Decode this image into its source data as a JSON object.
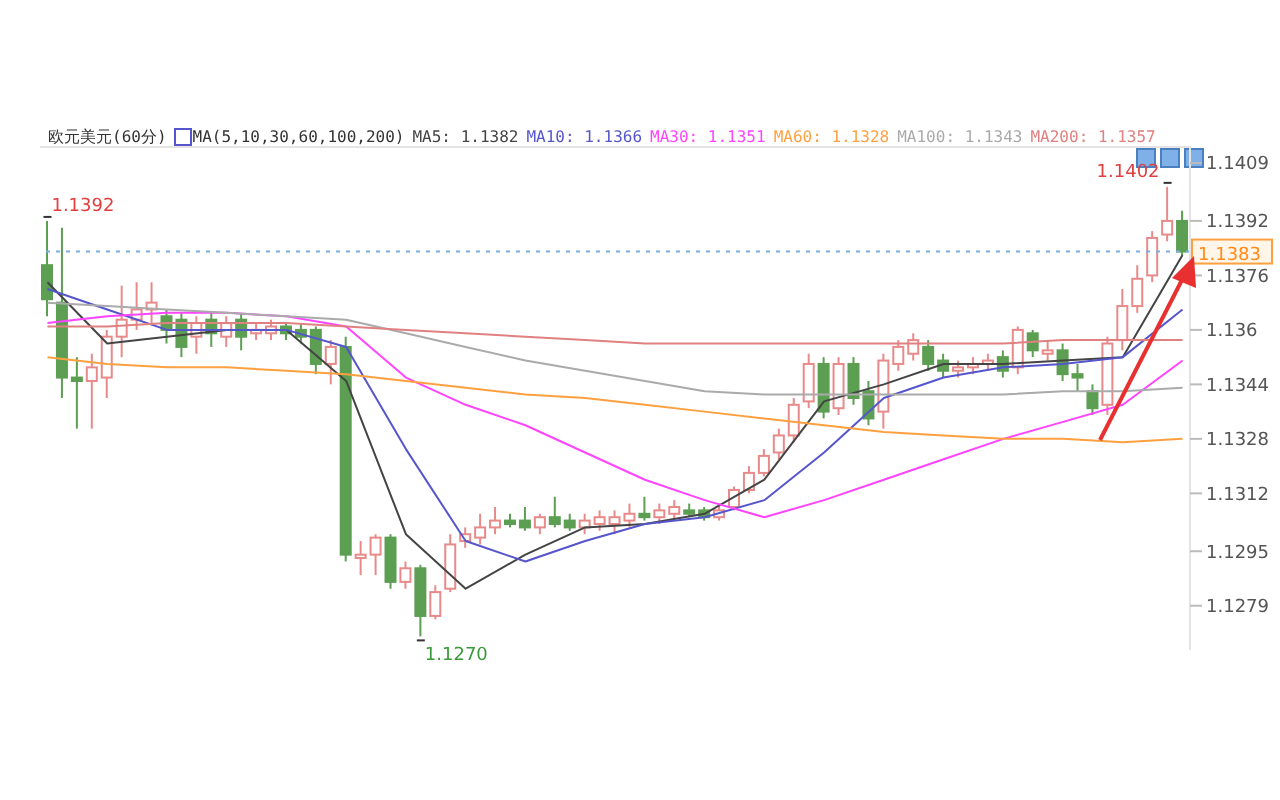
{
  "chart_data": {
    "type": "candlestick",
    "title": "欧元美元(60分)",
    "subtitle": "MA(5,10,30,60,100,200)",
    "categories": [
      null,
      null,
      null,
      null,
      null,
      null,
      null,
      null,
      null,
      null,
      null,
      null,
      null,
      null,
      null,
      null,
      null,
      null,
      null,
      null,
      null,
      null,
      null,
      null,
      null,
      null,
      null,
      null,
      null,
      null,
      null,
      null,
      null,
      null,
      null,
      null,
      null,
      null,
      null,
      null,
      null,
      null,
      null,
      null,
      null,
      null,
      null,
      null,
      null,
      null,
      null,
      null,
      null,
      null,
      null,
      null,
      null,
      null,
      null,
      null,
      null,
      null,
      null,
      null,
      null,
      null,
      null,
      null,
      null,
      null,
      null,
      null,
      null,
      null,
      null,
      null,
      null
    ],
    "ohlc": [
      [
        1.1379,
        1.1392,
        1.1364,
        1.1369
      ],
      [
        1.1368,
        1.139,
        1.134,
        1.1346
      ],
      [
        1.1346,
        1.1352,
        1.1331,
        1.1345
      ],
      [
        1.1345,
        1.1353,
        1.1331,
        1.1349
      ],
      [
        1.1346,
        1.136,
        1.134,
        1.1358
      ],
      [
        1.1358,
        1.1373,
        1.1352,
        1.1363
      ],
      [
        1.1363,
        1.1374,
        1.136,
        1.1366
      ],
      [
        1.1366,
        1.1374,
        1.1362,
        1.1368
      ],
      [
        1.1364,
        1.1366,
        1.1356,
        1.136
      ],
      [
        1.1363,
        1.1365,
        1.1352,
        1.1355
      ],
      [
        1.1358,
        1.1364,
        1.1353,
        1.1362
      ],
      [
        1.1363,
        1.1365,
        1.1355,
        1.1359
      ],
      [
        1.1358,
        1.1364,
        1.1355,
        1.1362
      ],
      [
        1.1363,
        1.1365,
        1.1354,
        1.1358
      ],
      [
        1.1359,
        1.1362,
        1.1357,
        1.136
      ],
      [
        1.1359,
        1.1363,
        1.1357,
        1.1361
      ],
      [
        1.1361,
        1.1362,
        1.1357,
        1.1359
      ],
      [
        1.136,
        1.1362,
        1.1356,
        1.1358
      ],
      [
        1.136,
        1.1361,
        1.1347,
        1.135
      ],
      [
        1.135,
        1.1357,
        1.1344,
        1.1355
      ],
      [
        1.1355,
        1.1358,
        1.1292,
        1.1294
      ],
      [
        1.1293,
        1.1298,
        1.1288,
        1.1294
      ],
      [
        1.1294,
        1.13,
        1.1288,
        1.1299
      ],
      [
        1.1299,
        1.13,
        1.1284,
        1.1286
      ],
      [
        1.1286,
        1.1292,
        1.1284,
        1.129
      ],
      [
        1.129,
        1.1291,
        1.127,
        1.1276
      ],
      [
        1.1276,
        1.1285,
        1.1275,
        1.1283
      ],
      [
        1.1284,
        1.13,
        1.1283,
        1.1297
      ],
      [
        1.1298,
        1.1302,
        1.1296,
        1.13
      ],
      [
        1.1299,
        1.1306,
        1.1297,
        1.1302
      ],
      [
        1.1302,
        1.1308,
        1.13,
        1.1304
      ],
      [
        1.1304,
        1.1306,
        1.1302,
        1.1303
      ],
      [
        1.1304,
        1.1308,
        1.1301,
        1.1302
      ],
      [
        1.1302,
        1.1306,
        1.13,
        1.1305
      ],
      [
        1.1305,
        1.1311,
        1.1302,
        1.1303
      ],
      [
        1.1304,
        1.1306,
        1.1301,
        1.1302
      ],
      [
        1.1302,
        1.1306,
        1.13,
        1.1304
      ],
      [
        1.1303,
        1.1307,
        1.1301,
        1.1305
      ],
      [
        1.1303,
        1.1307,
        1.13,
        1.1305
      ],
      [
        1.1304,
        1.1309,
        1.1302,
        1.1306
      ],
      [
        1.1306,
        1.1311,
        1.1304,
        1.1305
      ],
      [
        1.1305,
        1.1309,
        1.1303,
        1.1307
      ],
      [
        1.1306,
        1.131,
        1.1304,
        1.1308
      ],
      [
        1.1307,
        1.1309,
        1.1305,
        1.1306
      ],
      [
        1.1307,
        1.1308,
        1.1304,
        1.1305
      ],
      [
        1.1305,
        1.1309,
        1.1304,
        1.1307
      ],
      [
        1.1308,
        1.1314,
        1.1307,
        1.1313
      ],
      [
        1.1313,
        1.132,
        1.1312,
        1.1318
      ],
      [
        1.1318,
        1.1325,
        1.1317,
        1.1323
      ],
      [
        1.1324,
        1.1331,
        1.1322,
        1.1329
      ],
      [
        1.1329,
        1.134,
        1.1327,
        1.1338
      ],
      [
        1.1339,
        1.1353,
        1.1337,
        1.135
      ],
      [
        1.135,
        1.1352,
        1.1334,
        1.1336
      ],
      [
        1.1337,
        1.1352,
        1.1335,
        1.135
      ],
      [
        1.135,
        1.1352,
        1.1338,
        1.134
      ],
      [
        1.1342,
        1.1345,
        1.1332,
        1.1334
      ],
      [
        1.1336,
        1.1353,
        1.1331,
        1.1351
      ],
      [
        1.135,
        1.1357,
        1.1348,
        1.1355
      ],
      [
        1.1353,
        1.1359,
        1.1351,
        1.1357
      ],
      [
        1.1355,
        1.1357,
        1.1348,
        1.135
      ],
      [
        1.1351,
        1.1353,
        1.1346,
        1.1348
      ],
      [
        1.1348,
        1.1351,
        1.1346,
        1.1349
      ],
      [
        1.1349,
        1.1352,
        1.1347,
        1.135
      ],
      [
        1.135,
        1.1353,
        1.1348,
        1.1351
      ],
      [
        1.1352,
        1.1354,
        1.1346,
        1.1348
      ],
      [
        1.1349,
        1.1361,
        1.1347,
        1.136
      ],
      [
        1.1359,
        1.136,
        1.1352,
        1.1354
      ],
      [
        1.1353,
        1.1357,
        1.1351,
        1.1354
      ],
      [
        1.1354,
        1.1356,
        1.1345,
        1.1347
      ],
      [
        1.1347,
        1.135,
        1.1342,
        1.1346
      ],
      [
        1.1342,
        1.1344,
        1.1335,
        1.1337
      ],
      [
        1.1338,
        1.1358,
        1.1335,
        1.1356
      ],
      [
        1.1357,
        1.1372,
        1.1354,
        1.1367
      ],
      [
        1.1367,
        1.1379,
        1.1365,
        1.1375
      ],
      [
        1.1376,
        1.1389,
        1.1374,
        1.1387
      ],
      [
        1.1388,
        1.1402,
        1.1386,
        1.1392
      ],
      [
        1.1392,
        1.1395,
        1.1382,
        1.1383
      ]
    ],
    "colors": [
      "#5c9e52",
      "#5c9e52",
      "#5c9e52",
      "#e88a8a",
      "#e88a8a",
      "#e88a8a",
      "#e88a8a",
      "#e88a8a",
      "#5c9e52",
      "#5c9e52",
      "#e88a8a",
      "#5c9e52",
      "#e88a8a",
      "#5c9e52",
      "#e88a8a",
      "#e88a8a",
      "#5c9e52",
      "#5c9e52",
      "#5c9e52",
      "#e88a8a",
      "#5c9e52",
      "#e88a8a",
      "#e88a8a",
      "#5c9e52",
      "#e88a8a",
      "#5c9e52",
      "#e88a8a",
      "#e88a8a",
      "#e88a8a",
      "#e88a8a",
      "#e88a8a",
      "#5c9e52",
      "#5c9e52",
      "#e88a8a",
      "#5c9e52",
      "#5c9e52",
      "#e88a8a",
      "#e88a8a",
      "#e88a8a",
      "#e88a8a",
      "#5c9e52",
      "#e88a8a",
      "#e88a8a",
      "#5c9e52",
      "#5c9e52",
      "#e88a8a",
      "#e88a8a",
      "#e88a8a",
      "#e88a8a",
      "#e88a8a",
      "#e88a8a",
      "#e88a8a",
      "#5c9e52",
      "#e88a8a",
      "#5c9e52",
      "#5c9e52",
      "#e88a8a",
      "#e88a8a",
      "#e88a8a",
      "#5c9e52",
      "#5c9e52",
      "#e88a8a",
      "#e88a8a",
      "#e88a8a",
      "#5c9e52",
      "#e88a8a",
      "#5c9e52",
      "#e88a8a",
      "#5c9e52",
      "#5c9e52",
      "#5c9e52",
      "#e88a8a",
      "#e88a8a",
      "#e88a8a",
      "#e88a8a",
      "#e88a8a",
      "#5c9e52"
    ],
    "series": [
      {
        "type": "line",
        "name": "MA5: 1.1382",
        "color": "#444444",
        "values": [
          1.1374,
          null,
          null,
          null,
          1.1356,
          null,
          null,
          null,
          1.1358,
          null,
          null,
          null,
          1.136,
          null,
          null,
          null,
          1.136,
          null,
          null,
          null,
          1.1345,
          null,
          null,
          null,
          1.13,
          null,
          null,
          null,
          1.1284,
          null,
          null,
          null,
          1.1294,
          null,
          null,
          null,
          1.1302,
          null,
          null,
          null,
          1.1303,
          null,
          null,
          null,
          1.1306,
          null,
          null,
          null,
          1.1316,
          null,
          null,
          null,
          1.1339,
          null,
          null,
          null,
          1.1344,
          null,
          null,
          null,
          1.135,
          null,
          null,
          null,
          1.135,
          null,
          null,
          null,
          1.1351,
          null,
          null,
          null,
          1.1352,
          null,
          null,
          null,
          1.1382
        ]
      },
      {
        "type": "line",
        "name": "MA10: 1.1366",
        "color": "#5555cc",
        "values": [
          1.1372,
          null,
          null,
          null,
          1.1366,
          null,
          null,
          null,
          1.136,
          null,
          null,
          null,
          1.136,
          null,
          null,
          null,
          1.136,
          null,
          null,
          null,
          1.1355,
          null,
          null,
          null,
          1.1325,
          null,
          null,
          null,
          1.1298,
          null,
          null,
          null,
          1.1292,
          null,
          null,
          null,
          1.1298,
          null,
          null,
          null,
          1.1303,
          null,
          null,
          null,
          1.1305,
          null,
          null,
          null,
          1.131,
          null,
          null,
          null,
          1.1324,
          null,
          null,
          null,
          1.134,
          null,
          null,
          null,
          1.1346,
          null,
          null,
          null,
          1.1349,
          null,
          null,
          null,
          1.135,
          null,
          null,
          null,
          1.1352,
          null,
          null,
          null,
          1.1366
        ]
      },
      {
        "type": "line",
        "name": "MA30: 1.1351",
        "color": "#ff44ff",
        "values": [
          1.1362,
          null,
          null,
          null,
          1.1364,
          null,
          null,
          null,
          1.1365,
          null,
          null,
          null,
          1.1365,
          null,
          null,
          null,
          1.1364,
          null,
          null,
          null,
          1.1361,
          null,
          null,
          null,
          1.1346,
          null,
          null,
          null,
          1.1338,
          null,
          null,
          null,
          1.1332,
          null,
          null,
          null,
          1.1324,
          null,
          null,
          null,
          1.1316,
          null,
          null,
          null,
          1.131,
          null,
          null,
          null,
          1.1305,
          null,
          null,
          null,
          1.131,
          null,
          null,
          null,
          1.1316,
          null,
          null,
          null,
          1.1322,
          null,
          null,
          null,
          1.1328,
          null,
          null,
          null,
          1.1333,
          null,
          null,
          null,
          1.1338,
          null,
          null,
          null,
          1.1351
        ]
      },
      {
        "type": "line",
        "name": "MA60: 1.1328",
        "color": "#ffa040",
        "values": [
          1.1352,
          null,
          null,
          null,
          1.135,
          null,
          null,
          null,
          1.1349,
          null,
          null,
          null,
          1.1349,
          null,
          null,
          null,
          1.1348,
          null,
          null,
          null,
          1.1347,
          null,
          null,
          null,
          1.1345,
          null,
          null,
          null,
          1.1343,
          null,
          null,
          null,
          1.1341,
          null,
          null,
          null,
          1.134,
          null,
          null,
          null,
          1.1338,
          null,
          null,
          null,
          1.1336,
          null,
          null,
          null,
          1.1334,
          null,
          null,
          null,
          1.1332,
          null,
          null,
          null,
          1.133,
          null,
          null,
          null,
          1.1329,
          null,
          null,
          null,
          1.1328,
          null,
          null,
          null,
          1.1328,
          null,
          null,
          null,
          1.1327,
          null,
          null,
          null,
          1.1328
        ]
      },
      {
        "type": "line",
        "name": "MA100: 1.1343",
        "color": "#aaaaaa",
        "values": [
          1.1368,
          null,
          null,
          null,
          1.1367,
          null,
          null,
          null,
          1.1366,
          null,
          null,
          null,
          1.1365,
          null,
          null,
          null,
          1.1364,
          null,
          null,
          null,
          1.1363,
          null,
          null,
          null,
          1.1359,
          null,
          null,
          null,
          1.1355,
          null,
          null,
          null,
          1.1351,
          null,
          null,
          null,
          1.1348,
          null,
          null,
          null,
          1.1345,
          null,
          null,
          null,
          1.1342,
          null,
          null,
          null,
          1.1341,
          null,
          null,
          null,
          1.1341,
          null,
          null,
          null,
          1.1341,
          null,
          null,
          null,
          1.1341,
          null,
          null,
          null,
          1.1341,
          null,
          null,
          null,
          1.1342,
          null,
          null,
          null,
          1.1342,
          null,
          null,
          null,
          1.1343
        ]
      },
      {
        "type": "line",
        "name": "MA200: 1.1357",
        "color": "#e08080",
        "values": [
          1.1361,
          null,
          null,
          null,
          1.1361,
          null,
          null,
          null,
          1.1362,
          null,
          null,
          null,
          1.1362,
          null,
          null,
          null,
          1.1362,
          null,
          null,
          null,
          1.1361,
          null,
          null,
          null,
          1.136,
          null,
          null,
          null,
          1.1359,
          null,
          null,
          null,
          1.1358,
          null,
          null,
          null,
          1.1357,
          null,
          null,
          null,
          1.1356,
          null,
          null,
          null,
          1.1356,
          null,
          null,
          null,
          1.1356,
          null,
          null,
          null,
          1.1356,
          null,
          null,
          null,
          1.1356,
          null,
          null,
          null,
          1.1356,
          null,
          null,
          null,
          1.1356,
          null,
          null,
          null,
          1.1357,
          null,
          null,
          null,
          1.1357,
          null,
          null,
          null,
          1.1357
        ]
      }
    ],
    "ylim": [
      1.1266,
      1.1414
    ],
    "yticks": [
      1.1279,
      1.1295,
      1.1312,
      1.1328,
      1.1344,
      1.136,
      1.1376,
      1.1392,
      1.1409
    ],
    "tick_labels": "y",
    "legend": "top",
    "marker": "none",
    "ref_lines": [
      {
        "axis": "y",
        "value": 1.1383,
        "label": "1.1383",
        "color": "#7aaee0",
        "line_style": "dotted"
      }
    ],
    "annotations": [
      "1.1392",
      "1.1270",
      "1.1402"
    ]
  }
}
